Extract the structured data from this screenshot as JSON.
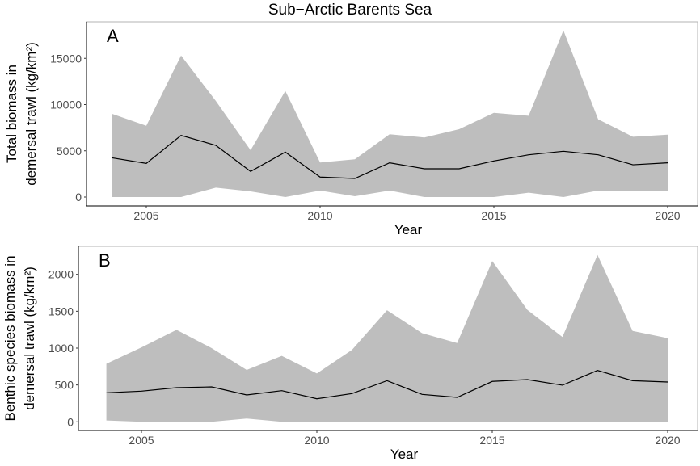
{
  "title": "Sub−Arctic Barents Sea",
  "chart_data": [
    {
      "type": "area",
      "panel_label": "A",
      "xlabel": "Year",
      "ylabel": [
        "Total biomass in",
        "demersal trawl (kg/km²)"
      ],
      "xticks": [
        2005,
        2010,
        2015,
        2020
      ],
      "yticks": [
        0,
        5000,
        10000,
        15000
      ],
      "xlim": [
        2004,
        2020
      ],
      "ylim": [
        0,
        18000
      ],
      "grid": false,
      "band_color": "#bebebe",
      "line_color": "#000000",
      "x": [
        2004,
        2005,
        2006,
        2007,
        2008,
        2009,
        2010,
        2011,
        2012,
        2013,
        2014,
        2015,
        2016,
        2017,
        2018,
        2019,
        2020
      ],
      "mean": [
        4250,
        3640,
        6670,
        5590,
        2770,
        4860,
        2160,
        2010,
        3700,
        3060,
        3060,
        3900,
        4570,
        4950,
        4570,
        3490,
        3700
      ],
      "upper": [
        9020,
        7710,
        15310,
        10390,
        5070,
        11470,
        3730,
        4080,
        6790,
        6440,
        7340,
        9110,
        8790,
        18020,
        8410,
        6520,
        6750
      ],
      "lower": [
        0,
        0,
        0,
        1020,
        610,
        0,
        700,
        90,
        700,
        0,
        0,
        0,
        470,
        0,
        700,
        610,
        700
      ]
    },
    {
      "type": "area",
      "panel_label": "B",
      "xlabel": "Year",
      "ylabel": [
        "Benthic species biomass in",
        "demersal trawl (kg/km²)"
      ],
      "xticks": [
        2005,
        2010,
        2015,
        2020
      ],
      "yticks": [
        0,
        500,
        1000,
        1500,
        2000
      ],
      "xlim": [
        2004,
        2020
      ],
      "ylim": [
        0,
        2300
      ],
      "grid": false,
      "band_color": "#bebebe",
      "line_color": "#000000",
      "x": [
        2004,
        2005,
        2006,
        2007,
        2008,
        2009,
        2010,
        2011,
        2012,
        2013,
        2014,
        2015,
        2016,
        2017,
        2018,
        2019,
        2020
      ],
      "mean": [
        394,
        416,
        463,
        474,
        365,
        423,
        313,
        383,
        558,
        372,
        332,
        548,
        573,
        497,
        697,
        558,
        540
      ],
      "upper": [
        788,
        1010,
        1248,
        1000,
        704,
        894,
        657,
        976,
        1514,
        1203,
        1069,
        2180,
        1519,
        1150,
        2263,
        1233,
        1135
      ],
      "lower": [
        18,
        0,
        0,
        0,
        44,
        0,
        0,
        0,
        0,
        0,
        0,
        0,
        0,
        0,
        0,
        0,
        0
      ]
    }
  ]
}
